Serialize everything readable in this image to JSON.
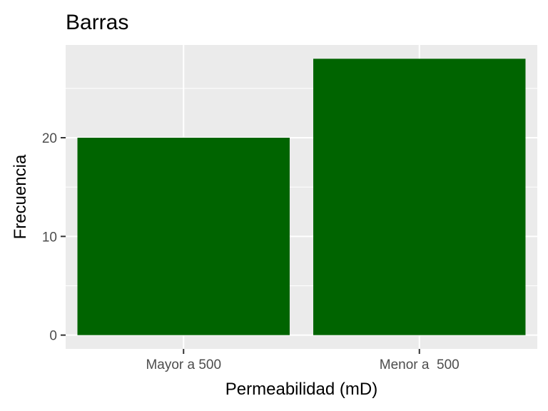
{
  "chart_data": {
    "type": "bar",
    "title": "Barras",
    "xlabel": "Permeabilidad (mD)",
    "ylabel": "Frecuencia",
    "categories": [
      "Mayor a 500",
      "Menor a  500"
    ],
    "values": [
      20,
      28
    ],
    "ylim": [
      0,
      28
    ],
    "yticks": [
      0,
      10,
      20
    ],
    "ytick_labels": [
      "0",
      "10",
      "20"
    ],
    "bar_color": "#006400",
    "panel_background": "#ebebeb",
    "grid_color": "#ffffff",
    "grid": true,
    "legend": "none"
  }
}
